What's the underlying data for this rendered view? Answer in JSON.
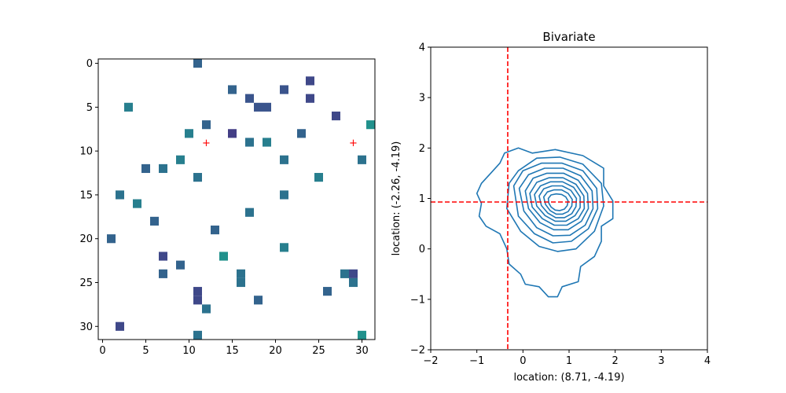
{
  "chart_data": [
    {
      "type": "heatmap",
      "title": "",
      "xlabel": "",
      "ylabel": "",
      "xlim": [
        -0.5,
        31.5
      ],
      "ylim": [
        31.5,
        -0.5
      ],
      "y_inverted": true,
      "x_ticks": [
        0,
        5,
        10,
        15,
        20,
        25,
        30
      ],
      "y_ticks": [
        0,
        5,
        10,
        15,
        20,
        25,
        30
      ],
      "colormap": "viridis",
      "cells": [
        {
          "x": 11,
          "y": 0,
          "color": "#33638d"
        },
        {
          "x": 24,
          "y": 2,
          "color": "#3f4889"
        },
        {
          "x": 15,
          "y": 3,
          "color": "#33638d"
        },
        {
          "x": 21,
          "y": 3,
          "color": "#3a548c"
        },
        {
          "x": 17,
          "y": 4,
          "color": "#3a548c"
        },
        {
          "x": 24,
          "y": 4,
          "color": "#3f4889"
        },
        {
          "x": 3,
          "y": 5,
          "color": "#277f8e"
        },
        {
          "x": 18,
          "y": 5,
          "color": "#3a548c"
        },
        {
          "x": 19,
          "y": 5,
          "color": "#3a548c"
        },
        {
          "x": 27,
          "y": 6,
          "color": "#3f4889"
        },
        {
          "x": 12,
          "y": 7,
          "color": "#33638d"
        },
        {
          "x": 31,
          "y": 7,
          "color": "#21918c"
        },
        {
          "x": 10,
          "y": 8,
          "color": "#277f8e"
        },
        {
          "x": 15,
          "y": 8,
          "color": "#433e85"
        },
        {
          "x": 23,
          "y": 8,
          "color": "#33638d"
        },
        {
          "x": 17,
          "y": 9,
          "color": "#2c728e"
        },
        {
          "x": 19,
          "y": 9,
          "color": "#277f8e"
        },
        {
          "x": 9,
          "y": 11,
          "color": "#277f8e"
        },
        {
          "x": 21,
          "y": 11,
          "color": "#2c728e"
        },
        {
          "x": 30,
          "y": 11,
          "color": "#2c728e"
        },
        {
          "x": 5,
          "y": 12,
          "color": "#33638d"
        },
        {
          "x": 7,
          "y": 12,
          "color": "#2c728e"
        },
        {
          "x": 11,
          "y": 13,
          "color": "#2c728e"
        },
        {
          "x": 25,
          "y": 13,
          "color": "#277f8e"
        },
        {
          "x": 2,
          "y": 15,
          "color": "#2c728e"
        },
        {
          "x": 21,
          "y": 15,
          "color": "#2c728e"
        },
        {
          "x": 4,
          "y": 16,
          "color": "#277f8e"
        },
        {
          "x": 17,
          "y": 17,
          "color": "#2c728e"
        },
        {
          "x": 6,
          "y": 18,
          "color": "#33638d"
        },
        {
          "x": 13,
          "y": 19,
          "color": "#33638d"
        },
        {
          "x": 1,
          "y": 20,
          "color": "#33638d"
        },
        {
          "x": 21,
          "y": 21,
          "color": "#277f8e"
        },
        {
          "x": 7,
          "y": 22,
          "color": "#3f4889"
        },
        {
          "x": 14,
          "y": 22,
          "color": "#21918c"
        },
        {
          "x": 9,
          "y": 23,
          "color": "#33638d"
        },
        {
          "x": 7,
          "y": 24,
          "color": "#33638d"
        },
        {
          "x": 16,
          "y": 24,
          "color": "#2c728e"
        },
        {
          "x": 28,
          "y": 24,
          "color": "#2c728e"
        },
        {
          "x": 29,
          "y": 24,
          "color": "#3f4889"
        },
        {
          "x": 16,
          "y": 25,
          "color": "#2c728e"
        },
        {
          "x": 29,
          "y": 25,
          "color": "#2c728e"
        },
        {
          "x": 11,
          "y": 26,
          "color": "#3f4889"
        },
        {
          "x": 26,
          "y": 26,
          "color": "#33638d"
        },
        {
          "x": 11,
          "y": 27,
          "color": "#3f4889"
        },
        {
          "x": 18,
          "y": 27,
          "color": "#33638d"
        },
        {
          "x": 12,
          "y": 28,
          "color": "#2c728e"
        },
        {
          "x": 2,
          "y": 30,
          "color": "#3f4889"
        },
        {
          "x": 11,
          "y": 31,
          "color": "#2c728e"
        },
        {
          "x": 30,
          "y": 31,
          "color": "#21918c"
        }
      ],
      "markers": [
        {
          "x": 12,
          "y": 9,
          "symbol": "+",
          "color": "#ff0000"
        },
        {
          "x": 29,
          "y": 9,
          "symbol": "+",
          "color": "#ff0000"
        }
      ]
    },
    {
      "type": "contour",
      "title": "Bivariate",
      "xlabel": "location: (8.71, -4.19)",
      "ylabel": "location: (-2.26, -4.19)",
      "xlim": [
        -2,
        4
      ],
      "ylim": [
        -2,
        4
      ],
      "x_ticks": [
        -2,
        -1,
        0,
        1,
        2,
        3,
        4
      ],
      "y_ticks": [
        -2,
        -1,
        0,
        1,
        2,
        3,
        4
      ],
      "line_color": "#1f77b4",
      "density_center": [
        0.7,
        0.95
      ],
      "contours": [
        {
          "level": 1,
          "points": [
            [
              -0.4,
              1.9
            ],
            [
              -0.5,
              1.7
            ],
            [
              -0.7,
              1.5
            ],
            [
              -0.9,
              1.3
            ],
            [
              -1.0,
              1.1
            ],
            [
              -0.9,
              0.9
            ],
            [
              -0.95,
              0.65
            ],
            [
              -0.8,
              0.45
            ],
            [
              -0.5,
              0.3
            ],
            [
              -0.35,
              0.0
            ],
            [
              -0.3,
              -0.3
            ],
            [
              -0.05,
              -0.5
            ],
            [
              0.05,
              -0.7
            ],
            [
              0.35,
              -0.75
            ],
            [
              0.55,
              -0.95
            ],
            [
              0.75,
              -0.95
            ],
            [
              0.85,
              -0.75
            ],
            [
              1.2,
              -0.65
            ],
            [
              1.25,
              -0.35
            ],
            [
              1.55,
              -0.15
            ],
            [
              1.7,
              0.15
            ],
            [
              1.7,
              0.45
            ],
            [
              1.95,
              0.6
            ],
            [
              1.95,
              0.95
            ],
            [
              1.75,
              1.25
            ],
            [
              1.75,
              1.6
            ],
            [
              1.3,
              1.85
            ],
            [
              0.7,
              1.97
            ],
            [
              0.2,
              1.9
            ],
            [
              -0.1,
              2.0
            ],
            [
              -0.4,
              1.9
            ]
          ]
        },
        {
          "level": 2,
          "points": [
            [
              -0.3,
              1.3
            ],
            [
              -0.1,
              1.55
            ],
            [
              0.3,
              1.8
            ],
            [
              0.8,
              1.82
            ],
            [
              1.3,
              1.68
            ],
            [
              1.7,
              1.3
            ],
            [
              1.75,
              0.85
            ],
            [
              1.55,
              0.35
            ],
            [
              1.15,
              0.0
            ],
            [
              0.75,
              -0.05
            ],
            [
              0.35,
              0.05
            ],
            [
              -0.05,
              0.35
            ],
            [
              -0.35,
              0.8
            ],
            [
              -0.3,
              1.3
            ]
          ]
        },
        {
          "level": 3,
          "points": [
            [
              -0.2,
              1.25
            ],
            [
              0.0,
              1.55
            ],
            [
              0.4,
              1.7
            ],
            [
              0.85,
              1.7
            ],
            [
              1.3,
              1.55
            ],
            [
              1.6,
              1.2
            ],
            [
              1.62,
              0.8
            ],
            [
              1.42,
              0.4
            ],
            [
              1.05,
              0.15
            ],
            [
              0.65,
              0.12
            ],
            [
              0.25,
              0.3
            ],
            [
              -0.1,
              0.65
            ],
            [
              -0.2,
              1.25
            ]
          ]
        },
        {
          "level": 4,
          "points": [
            [
              -0.08,
              1.2
            ],
            [
              0.12,
              1.47
            ],
            [
              0.47,
              1.6
            ],
            [
              0.87,
              1.6
            ],
            [
              1.25,
              1.45
            ],
            [
              1.5,
              1.15
            ],
            [
              1.52,
              0.8
            ],
            [
              1.35,
              0.47
            ],
            [
              1.02,
              0.27
            ],
            [
              0.65,
              0.26
            ],
            [
              0.3,
              0.42
            ],
            [
              0.02,
              0.75
            ],
            [
              -0.08,
              1.2
            ]
          ]
        },
        {
          "level": 5,
          "points": [
            [
              0.05,
              1.15
            ],
            [
              0.22,
              1.4
            ],
            [
              0.52,
              1.5
            ],
            [
              0.88,
              1.5
            ],
            [
              1.2,
              1.36
            ],
            [
              1.4,
              1.1
            ],
            [
              1.42,
              0.8
            ],
            [
              1.27,
              0.55
            ],
            [
              0.98,
              0.38
            ],
            [
              0.67,
              0.38
            ],
            [
              0.37,
              0.52
            ],
            [
              0.12,
              0.8
            ],
            [
              0.05,
              1.15
            ]
          ]
        },
        {
          "level": 6,
          "points": [
            [
              0.15,
              1.1
            ],
            [
              0.3,
              1.32
            ],
            [
              0.56,
              1.41
            ],
            [
              0.87,
              1.41
            ],
            [
              1.15,
              1.28
            ],
            [
              1.32,
              1.05
            ],
            [
              1.33,
              0.8
            ],
            [
              1.2,
              0.6
            ],
            [
              0.95,
              0.47
            ],
            [
              0.68,
              0.47
            ],
            [
              0.42,
              0.6
            ],
            [
              0.2,
              0.83
            ],
            [
              0.15,
              1.1
            ]
          ]
        },
        {
          "level": 7,
          "points": [
            [
              0.25,
              1.08
            ],
            [
              0.38,
              1.25
            ],
            [
              0.6,
              1.33
            ],
            [
              0.86,
              1.33
            ],
            [
              1.1,
              1.22
            ],
            [
              1.24,
              1.03
            ],
            [
              1.24,
              0.82
            ],
            [
              1.13,
              0.66
            ],
            [
              0.93,
              0.55
            ],
            [
              0.7,
              0.55
            ],
            [
              0.48,
              0.66
            ],
            [
              0.3,
              0.85
            ],
            [
              0.25,
              1.08
            ]
          ]
        },
        {
          "level": 8,
          "points": [
            [
              0.35,
              1.05
            ],
            [
              0.45,
              1.19
            ],
            [
              0.63,
              1.25
            ],
            [
              0.85,
              1.25
            ],
            [
              1.04,
              1.16
            ],
            [
              1.16,
              1.0
            ],
            [
              1.15,
              0.84
            ],
            [
              1.06,
              0.7
            ],
            [
              0.9,
              0.62
            ],
            [
              0.71,
              0.62
            ],
            [
              0.54,
              0.71
            ],
            [
              0.4,
              0.86
            ],
            [
              0.35,
              1.05
            ]
          ]
        },
        {
          "level": 9,
          "points": [
            [
              0.45,
              1.03
            ],
            [
              0.53,
              1.13
            ],
            [
              0.67,
              1.17
            ],
            [
              0.84,
              1.17
            ],
            [
              0.98,
              1.1
            ],
            [
              1.07,
              0.98
            ],
            [
              1.06,
              0.85
            ],
            [
              0.98,
              0.74
            ],
            [
              0.86,
              0.69
            ],
            [
              0.72,
              0.69
            ],
            [
              0.59,
              0.76
            ],
            [
              0.49,
              0.88
            ],
            [
              0.45,
              1.03
            ]
          ]
        },
        {
          "level": 10,
          "points": [
            [
              0.55,
              1.0
            ],
            [
              0.61,
              1.07
            ],
            [
              0.72,
              1.09
            ],
            [
              0.84,
              1.08
            ],
            [
              0.93,
              1.03
            ],
            [
              0.98,
              0.95
            ],
            [
              0.96,
              0.86
            ],
            [
              0.9,
              0.79
            ],
            [
              0.8,
              0.76
            ],
            [
              0.7,
              0.77
            ],
            [
              0.61,
              0.83
            ],
            [
              0.56,
              0.91
            ],
            [
              0.55,
              1.0
            ]
          ]
        }
      ],
      "reference_lines": [
        {
          "orientation": "vertical",
          "value": -0.33,
          "color": "#ff0000",
          "style": "dashed"
        },
        {
          "orientation": "horizontal",
          "value": 0.93,
          "color": "#ff0000",
          "style": "dashed"
        }
      ]
    }
  ]
}
